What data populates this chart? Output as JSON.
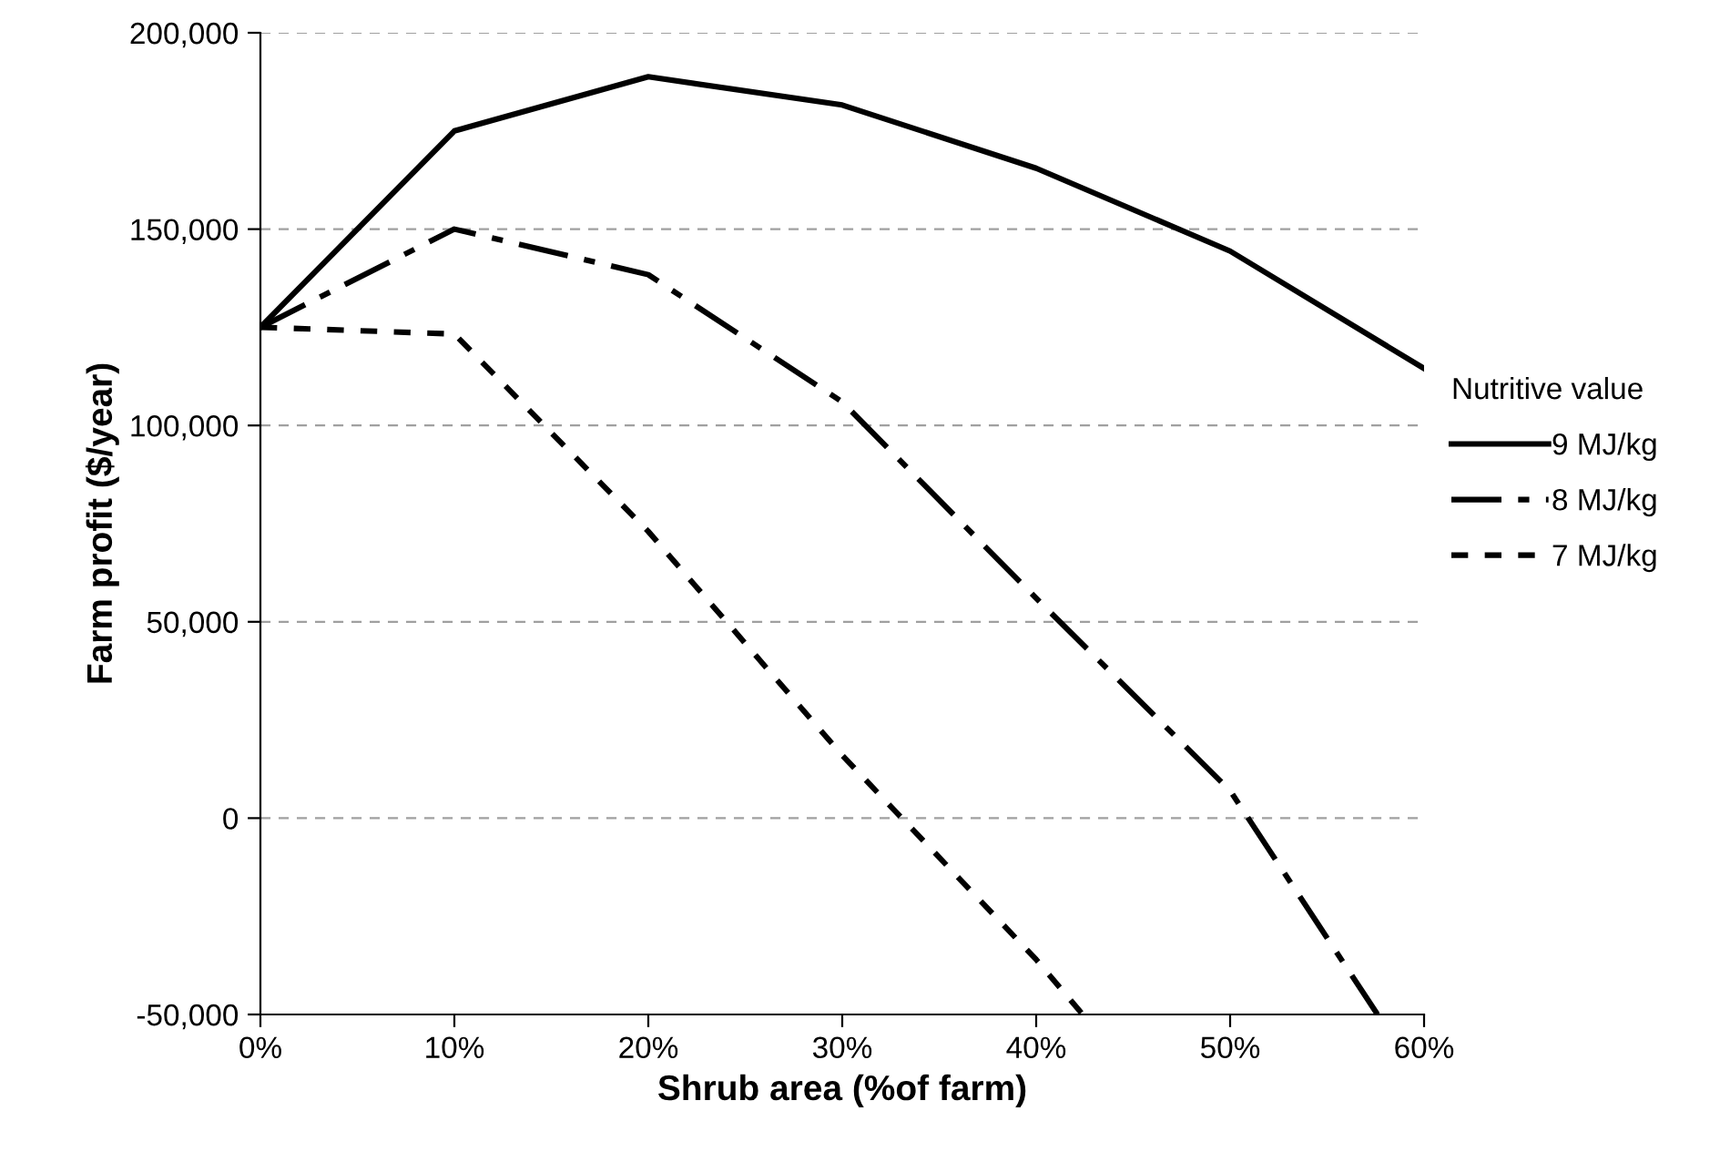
{
  "chart_data": {
    "type": "line",
    "xlabel": "Shrub area (%of farm)",
    "ylabel": "Farm profit ($/year)",
    "legend_title": "Nutritive value",
    "legend": "right",
    "grid": "y",
    "marker": "none",
    "xlim": [
      0,
      60
    ],
    "xticks": [
      {
        "value": 0,
        "label": "0%"
      },
      {
        "value": 10,
        "label": "10%"
      },
      {
        "value": 20,
        "label": "20%"
      },
      {
        "value": 30,
        "label": "30%"
      },
      {
        "value": 40,
        "label": "40%"
      },
      {
        "value": 50,
        "label": "50%"
      },
      {
        "value": 60,
        "label": "60%"
      }
    ],
    "ylim": [
      -50000,
      200000
    ],
    "yticks": [
      {
        "value": -50000,
        "label": "-50,000"
      },
      {
        "value": 0,
        "label": "0"
      },
      {
        "value": 50000,
        "label": "50,000"
      },
      {
        "value": 100000,
        "label": "100,000"
      },
      {
        "value": 150000,
        "label": "150,000"
      },
      {
        "value": 200000,
        "label": "200,000"
      }
    ],
    "series": [
      {
        "name": "9 MJ/kg",
        "color": "#000000",
        "line_style": "solid",
        "x": [
          0,
          10,
          20,
          30,
          40,
          50,
          60
        ],
        "values": [
          125000,
          175000,
          188800,
          181600,
          165500,
          144400,
          114500
        ]
      },
      {
        "name": "8 MJ/kg",
        "color": "#000000",
        "line_style": "dashed",
        "x": [
          0,
          10,
          20,
          30,
          40,
          50,
          57.6
        ],
        "values": [
          125000,
          150000,
          138400,
          106000,
          56000,
          7000,
          -50000
        ]
      },
      {
        "name": "7 MJ/kg",
        "color": "#000000",
        "line_style": "dotted",
        "x": [
          0,
          10,
          20,
          30,
          40,
          42.4
        ],
        "values": [
          125000,
          123300,
          73000,
          16000,
          -36000,
          -50000
        ]
      }
    ]
  }
}
